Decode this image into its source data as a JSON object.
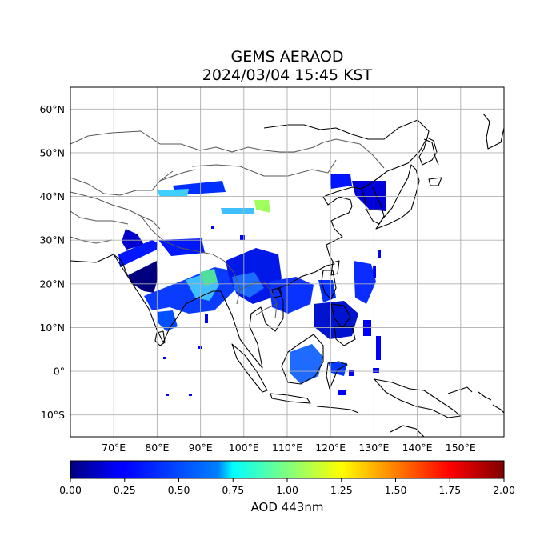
{
  "title_line1": "GEMS AERAOD",
  "title_line2": "2024/03/04 15:45 KST",
  "lon_labels": [
    "70°E",
    "80°E",
    "90°E",
    "100°E",
    "110°E",
    "120°E",
    "130°E",
    "140°E",
    "150°E"
  ],
  "lat_labels": [
    "60°N",
    "50°N",
    "40°N",
    "30°N",
    "20°N",
    "10°N",
    "0°",
    "10°S"
  ],
  "lon_values": [
    70,
    80,
    90,
    100,
    110,
    120,
    130,
    140,
    150
  ],
  "lat_values": [
    60,
    50,
    40,
    30,
    20,
    10,
    0,
    -10
  ],
  "map_extent": {
    "lon_min": 60,
    "lon_max": 160,
    "lat_min": -15,
    "lat_max": 65
  },
  "colorbar": {
    "label": "AOD 443nm",
    "min": 0.0,
    "max": 2.0,
    "tick_values": [
      0.0,
      0.25,
      0.5,
      0.75,
      1.0,
      1.25,
      1.5,
      1.75,
      2.0
    ],
    "tick_labels": [
      "0.00",
      "0.25",
      "0.50",
      "0.75",
      "1.00",
      "1.25",
      "1.50",
      "1.75",
      "2.00"
    ],
    "colormap": "jet",
    "colors": [
      "#00007f",
      "#0000ff",
      "#007fff",
      "#00ffff",
      "#7fff7f",
      "#ffff00",
      "#ff7f00",
      "#ff0000",
      "#7f0000"
    ]
  },
  "grid": true,
  "data_color_main": "#0000ff"
}
